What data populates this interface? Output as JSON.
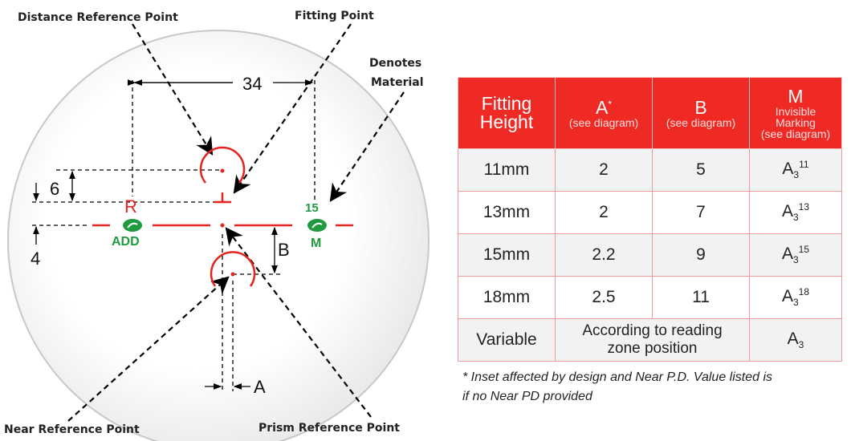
{
  "callouts": {
    "distance_ref": "Distance Reference Point",
    "fitting": "Fitting Point",
    "denotes1": "Denotes",
    "denotes2": "Material",
    "near_ref": "Near Reference Point",
    "prism_ref": "Prism Reference Point"
  },
  "dims": {
    "d34": "34",
    "d6": "6",
    "d4": "4",
    "B": "B",
    "A": "A"
  },
  "marks": {
    "R": "R",
    "add": "ADD",
    "m_num": "15",
    "M": "M"
  },
  "colors": {
    "red": "#e3241f",
    "green": "#1f9a3f",
    "header": "#ef2a24"
  },
  "table": {
    "headers": [
      {
        "line1": "Fitting",
        "line2": "Height"
      },
      {
        "title": "A",
        "sup": "*",
        "sub": "(see diagram)"
      },
      {
        "title": "B",
        "sub": "(see diagram)"
      },
      {
        "title": "M",
        "sub1": "Invisible",
        "sub2": "Marking",
        "sub3": "(see diagram)"
      }
    ],
    "rows": [
      {
        "height": "11mm",
        "a": "2",
        "b": "5",
        "m": "A",
        "m_sub": "3",
        "m_sup": "11"
      },
      {
        "height": "13mm",
        "a": "2",
        "b": "7",
        "m": "A",
        "m_sub": "3",
        "m_sup": "13"
      },
      {
        "height": "15mm",
        "a": "2.2",
        "b": "9",
        "m": "A",
        "m_sub": "3",
        "m_sup": "15"
      },
      {
        "height": "18mm",
        "a": "2.5",
        "b": "11",
        "m": "A",
        "m_sub": "3",
        "m_sup": "18"
      }
    ],
    "variable": {
      "height": "Variable",
      "ab1": "According to reading",
      "ab2": "zone position",
      "m": "A",
      "m_sub": "3"
    }
  },
  "footnote": {
    "line1": "* Inset affected by design and Near P.D. Value listed is",
    "line2": "if no Near PD provided"
  }
}
